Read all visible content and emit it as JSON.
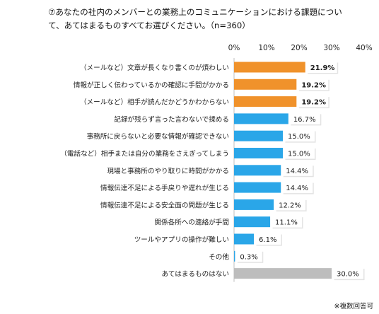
{
  "question": {
    "line1": "⑦あなたの社内のメンバーとの業務上のコミュニケーションにおける課題につい",
    "line2": "て、あてはまるものすべてお選びください。（n=360）"
  },
  "footnote": "※複数回答可",
  "colors": {
    "highlight": "#f0922b",
    "normal": "#2aa6e8",
    "none": "#bdbdbd"
  },
  "chart_data": {
    "type": "bar",
    "orientation": "horizontal",
    "xlim": [
      0,
      40
    ],
    "xticks": [
      "0%",
      "10%",
      "20%",
      "30%",
      "40%"
    ],
    "tick_values": [
      0,
      10,
      20,
      30,
      40
    ],
    "grid": false,
    "categories": [
      "（メールなど）文章が長くなり書くのが煩わしい",
      "情報が正しく伝わっているかの確認に手間がかかる",
      "（メールなど）相手が読んだかどうかわからない",
      "記録が残らず言った言わないで揉める",
      "事務所に戻らないと必要な情報が確認できない",
      "（電話など）相手または自分の業務をさえぎってしまう",
      "現場と事務所のやり取りに時間がかかる",
      "情報伝達不足による手戻りや遅れが生じる",
      "情報伝達不足による安全面の問題が生じる",
      "関係各所への連絡が手間",
      "ツールやアプリの操作が難しい",
      "その他",
      "あてはまるものはない"
    ],
    "values": [
      21.9,
      19.2,
      19.2,
      16.7,
      15.0,
      15.0,
      14.4,
      14.4,
      12.2,
      11.1,
      6.1,
      0.3,
      30.0
    ],
    "value_labels": [
      "21.9%",
      "19.2%",
      "19.2%",
      "16.7%",
      "15.0%",
      "15.0%",
      "14.4%",
      "14.4%",
      "12.2%",
      "11.1%",
      "6.1%",
      "0.3%",
      "30.0%"
    ],
    "bar_groups": [
      "highlight",
      "highlight",
      "highlight",
      "normal",
      "normal",
      "normal",
      "normal",
      "normal",
      "normal",
      "normal",
      "normal",
      "normal",
      "none"
    ]
  }
}
